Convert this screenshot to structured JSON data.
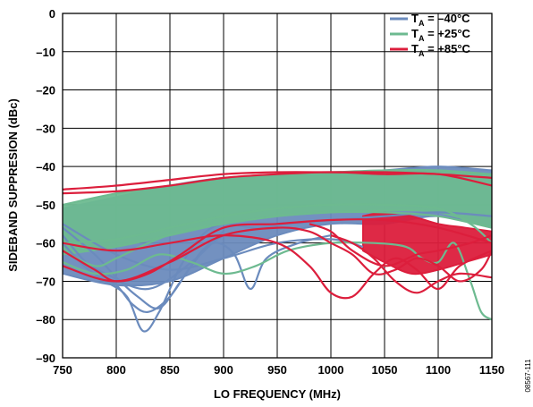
{
  "chart_data": {
    "type": "line",
    "xlabel": "LO FREQUENCY (MHz)",
    "ylabel": "SIDEBAND SUPPRESION (dBc)",
    "xlim": [
      750,
      1150
    ],
    "ylim": [
      -90,
      0
    ],
    "x_ticks": [
      "750",
      "800",
      "850",
      "900",
      "950",
      "1000",
      "1050",
      "1100",
      "1150"
    ],
    "y_ticks": [
      "0",
      "–10",
      "–20",
      "–30",
      "–40",
      "–50",
      "–60",
      "–70",
      "–80",
      "–90"
    ],
    "grid": true,
    "legend_position": "top-right",
    "figure_id": "08567-111",
    "series": [
      {
        "name": "–40°C",
        "legend_prefix": "T",
        "legend_subscript": "A",
        "legend_value": " = –40°C",
        "color": "#6b8bbd",
        "band": {
          "x": [
            750,
            800,
            850,
            900,
            950,
            1000,
            1050,
            1100,
            1150
          ],
          "upper": [
            -51,
            -48,
            -45,
            -43,
            -42.5,
            -42,
            -41,
            -40,
            -41
          ],
          "lower": [
            -68,
            -71,
            -70,
            -64,
            -58,
            -55,
            -55,
            -53,
            -56
          ]
        },
        "lines": [
          {
            "x": [
              750,
              770,
              790,
              810,
              825,
              840,
              860,
              880,
              900,
              930,
              960,
              1000,
              1050,
              1100,
              1150
            ],
            "y": [
              -60,
              -66,
              -70,
              -74,
              -83,
              -78,
              -66,
              -58,
              -55,
              -56,
              -55,
              -54,
              -53,
              -52,
              -53
            ]
          },
          {
            "x": [
              750,
              775,
              800,
              815,
              830,
              850,
              870,
              890,
              910,
              925,
              940,
              970,
              1000
            ],
            "y": [
              -58,
              -66,
              -71,
              -76,
              -78,
              -74,
              -66,
              -60,
              -63,
              -72,
              -64,
              -60,
              -58
            ]
          },
          {
            "x": [
              750,
              780,
              800,
              820,
              840,
              860,
              880,
              900
            ],
            "y": [
              -56,
              -63,
              -69,
              -74,
              -77,
              -70,
              -62,
              -58
            ]
          },
          {
            "x": [
              750,
              800,
              850,
              900,
              950,
              1000,
              1030
            ],
            "y": [
              -55,
              -63,
              -67,
              -64,
              -60,
              -59,
              -61
            ]
          },
          {
            "x": [
              750,
              790,
              830,
              870,
              900
            ],
            "y": [
              -62,
              -68,
              -72,
              -65,
              -57
            ]
          }
        ]
      },
      {
        "name": "+25°C",
        "legend_prefix": "T",
        "legend_subscript": "A",
        "legend_value": " = +25°C",
        "color": "#6dba90",
        "band": {
          "x": [
            750,
            800,
            850,
            900,
            950,
            1000,
            1050,
            1100,
            1150
          ],
          "upper": [
            -50,
            -47,
            -45,
            -43,
            -42,
            -41.5,
            -41,
            -41,
            -42
          ],
          "lower": [
            -63,
            -61,
            -58,
            -55,
            -53,
            -52,
            -51.5,
            -52,
            -56
          ]
        },
        "lines": [
          {
            "x": [
              750,
              780,
              810,
              840,
              870,
              900,
              930,
              960,
              1000,
              1040,
              1070,
              1085,
              1100,
              1115,
              1130,
              1140,
              1150
            ],
            "y": [
              -65,
              -68,
              -67,
              -63,
              -65,
              -68,
              -66,
              -62,
              -60,
              -60,
              -61,
              -64,
              -65,
              -60,
              -70,
              -78,
              -80
            ]
          },
          {
            "x": [
              750,
              780,
              800,
              830,
              860,
              900,
              950,
              1000,
              1050,
              1100,
              1150
            ],
            "y": [
              -62,
              -66,
              -64,
              -60,
              -57,
              -55,
              -53,
              -52,
              -52,
              -53,
              -56
            ]
          },
          {
            "x": [
              750,
              800,
              850,
              900,
              950,
              1000,
              1050,
              1100,
              1130,
              1150
            ],
            "y": [
              -60,
              -59,
              -56,
              -53,
              -51,
              -50,
              -50,
              -51,
              -55,
              -60
            ]
          }
        ]
      },
      {
        "name": "+85°C",
        "legend_prefix": "T",
        "legend_subscript": "A",
        "legend_value": " = +85°C",
        "color": "#dc1e3c",
        "band": {
          "x": [
            1030,
            1050,
            1075,
            1100,
            1125,
            1150
          ],
          "upper": [
            -53,
            -52,
            -53,
            -55,
            -56,
            -57
          ],
          "lower": [
            -62,
            -65,
            -68,
            -67,
            -65,
            -63
          ]
        },
        "lines": [
          {
            "x": [
              750,
              800,
              850,
              900,
              950,
              1000,
              1050,
              1100,
              1150
            ],
            "y": [
              -46,
              -45,
              -43.5,
              -42,
              -41.5,
              -41.5,
              -41.5,
              -42,
              -43
            ]
          },
          {
            "x": [
              750,
              800,
              850,
              900,
              950,
              1000,
              1050,
              1100,
              1150
            ],
            "y": [
              -47,
              -46.5,
              -45,
              -43,
              -42,
              -41.5,
              -42,
              -42,
              -45
            ]
          },
          {
            "x": [
              750,
              780,
              800,
              830,
              860,
              900,
              950,
              1000,
              1050,
              1100,
              1150
            ],
            "y": [
              -62,
              -67,
              -70,
              -68,
              -63,
              -56,
              -55,
              -54,
              -54,
              -56,
              -60
            ]
          },
          {
            "x": [
              750,
              800,
              850,
              900,
              950,
              980,
              1000,
              1020,
              1040,
              1060,
              1080,
              1100,
              1120,
              1140,
              1150
            ],
            "y": [
              -66,
              -70,
              -65,
              -58,
              -56,
              -57,
              -60,
              -63,
              -68,
              -67,
              -64,
              -66,
              -70,
              -67,
              -62
            ]
          },
          {
            "x": [
              750,
              800,
              850,
              900,
              950,
              980,
              1000,
              1020,
              1040,
              1060,
              1080,
              1100,
              1120,
              1150
            ],
            "y": [
              -60,
              -62,
              -60,
              -58,
              -60,
              -66,
              -73,
              -74,
              -68,
              -64,
              -67,
              -72,
              -66,
              -62
            ]
          },
          {
            "x": [
              1000,
              1020,
              1040,
              1060,
              1080,
              1100,
              1120,
              1150
            ],
            "y": [
              -58,
              -60,
              -64,
              -70,
              -73,
              -70,
              -68,
              -69
            ]
          },
          {
            "x": [
              980,
              1000,
              1020,
              1050,
              1080,
              1100,
              1130,
              1150
            ],
            "y": [
              -55,
              -57,
              -62,
              -66,
              -63,
              -62,
              -60,
              -58
            ]
          }
        ]
      }
    ]
  }
}
